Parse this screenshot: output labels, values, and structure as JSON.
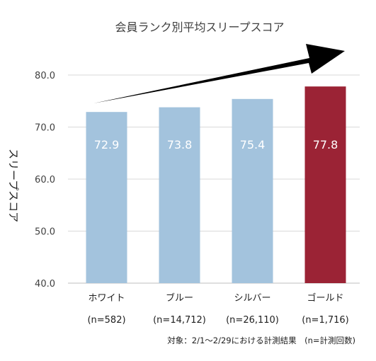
{
  "chart_data": {
    "type": "bar",
    "title": "会員ランク別平均スリープスコア",
    "ylabel": "スリープスコア",
    "xlabel": "",
    "categories": [
      "ホワイト",
      "ブルー",
      "シルバー",
      "ゴールド"
    ],
    "category_counts": [
      "(n=582)",
      "(n=14,712)",
      "(n=26,110)",
      "(n=1,716)"
    ],
    "values": [
      72.9,
      73.8,
      75.4,
      77.8
    ],
    "value_labels": [
      "72.9",
      "73.8",
      "75.4",
      "77.8"
    ],
    "ylim": [
      40,
      80
    ],
    "yticks": [
      40,
      50,
      60,
      70,
      80
    ],
    "ytick_labels": [
      "40.0",
      "50.0",
      "60.0",
      "70.0",
      "80.0"
    ],
    "grid": true,
    "legend": "none",
    "colors": [
      "#a3c3dd",
      "#a3c3dd",
      "#a3c3dd",
      "#9b2335"
    ],
    "annotation": "対象：2/1～2/29における計測結果　(n=計測回数)",
    "trend_arrow": true
  }
}
